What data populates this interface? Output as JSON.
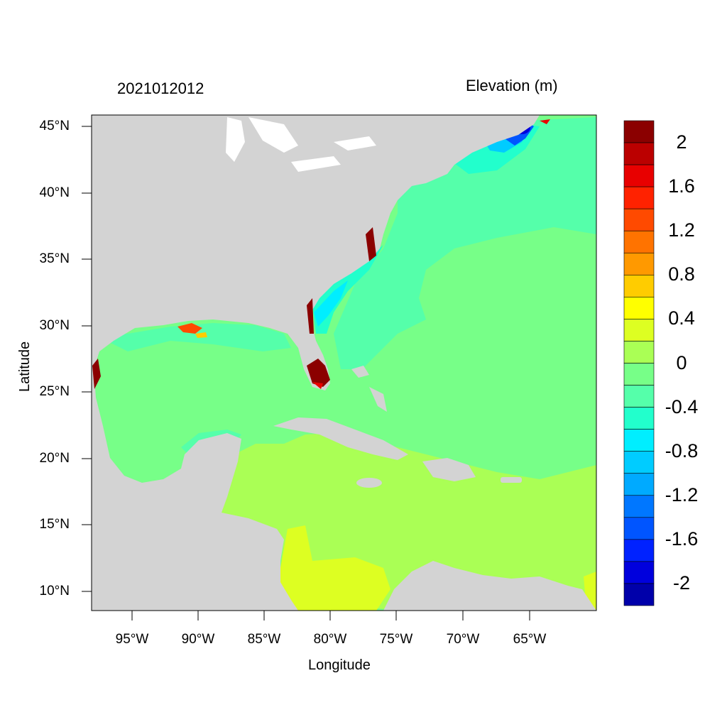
{
  "header": {
    "datetime": "2021012012",
    "variable": "Elevation (m)"
  },
  "axes": {
    "xlabel": "Longitude",
    "ylabel": "Latitude",
    "lat_ticks": [
      "45°N",
      "40°N",
      "35°N",
      "30°N",
      "25°N",
      "20°N",
      "15°N",
      "10°N"
    ],
    "lon_ticks": [
      "95°W",
      "90°W",
      "85°W",
      "80°W",
      "75°W",
      "70°W",
      "65°W"
    ],
    "extent": {
      "lon_min": -98,
      "lon_max": -60,
      "lat_min": 8.5,
      "lat_max": 46
    }
  },
  "colorbar": {
    "labels": [
      "2",
      "1.6",
      "1.2",
      "0.8",
      "0.4",
      "0",
      "-0.4",
      "-0.8",
      "-1.2",
      "-1.6",
      "-2"
    ],
    "colors": [
      "#8b0000",
      "#bb0000",
      "#e80000",
      "#ff2200",
      "#ff4a00",
      "#ff7300",
      "#ff9900",
      "#ffcc00",
      "#ffff00",
      "#ddff22",
      "#aaff55",
      "#77ff88",
      "#55ffaa",
      "#22ffcc",
      "#00eeff",
      "#00ccff",
      "#00aaff",
      "#0077ff",
      "#0055ff",
      "#0022ff",
      "#0000dd",
      "#0000aa"
    ]
  },
  "colors": {
    "land": "#d3d3d3",
    "ocean_base": "#77ff88",
    "caribbean": "#aaff55",
    "shelf": "#55ffaa",
    "southwest": "#ddff22"
  }
}
